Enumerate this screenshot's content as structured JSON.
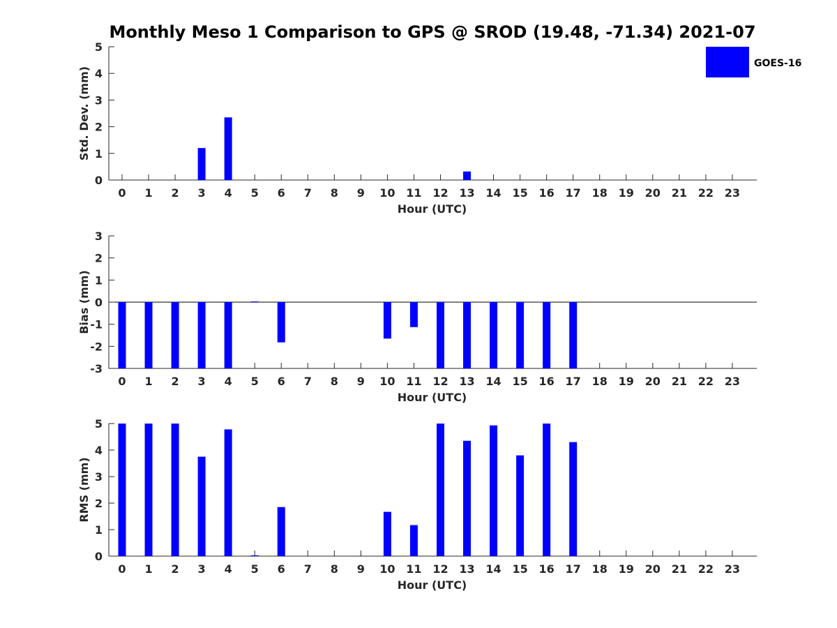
{
  "title": "Monthly Meso 1 Comparison to GPS @ SROD (19.48, -71.34) 2021-07",
  "legend": {
    "label": "GOES-16",
    "placement": "top-right"
  },
  "colors": {
    "bar": "#0000ff",
    "axis": "#262626"
  },
  "chart_data": [
    {
      "type": "bar",
      "name": "std-dev",
      "categories": [
        "0",
        "1",
        "2",
        "3",
        "4",
        "5",
        "6",
        "7",
        "8",
        "9",
        "10",
        "11",
        "12",
        "13",
        "14",
        "15",
        "16",
        "17",
        "18",
        "19",
        "20",
        "21",
        "22",
        "23"
      ],
      "series": [
        {
          "name": "GOES-16",
          "values": [
            null,
            null,
            null,
            1.2,
            2.35,
            null,
            null,
            null,
            null,
            null,
            null,
            null,
            null,
            0.32,
            null,
            null,
            null,
            null,
            null,
            null,
            null,
            null,
            null,
            null
          ]
        }
      ],
      "xlabel": "Hour (UTC)",
      "ylabel": "Std. Dev. (mm)",
      "ylim": [
        0,
        5
      ],
      "yticks": [
        0,
        1,
        2,
        3,
        4,
        5
      ],
      "grid": false
    },
    {
      "type": "bar",
      "name": "bias",
      "categories": [
        "0",
        "1",
        "2",
        "3",
        "4",
        "5",
        "6",
        "7",
        "8",
        "9",
        "10",
        "11",
        "12",
        "13",
        "14",
        "15",
        "16",
        "17",
        "18",
        "19",
        "20",
        "21",
        "22",
        "23"
      ],
      "series": [
        {
          "name": "GOES-16",
          "values": [
            -3,
            -3,
            -3,
            -3,
            -3,
            0.03,
            -1.82,
            null,
            null,
            null,
            -1.65,
            -1.13,
            -3,
            -3,
            -3,
            -3,
            -3,
            -3,
            null,
            null,
            null,
            null,
            null,
            null
          ]
        }
      ],
      "xlabel": "Hour (UTC)",
      "ylabel": "Bias (mm)",
      "ylim": [
        -3,
        3
      ],
      "yticks": [
        -3,
        -2,
        -1,
        0,
        1,
        2,
        3
      ],
      "zero_line": true,
      "grid": false
    },
    {
      "type": "bar",
      "name": "rms",
      "categories": [
        "0",
        "1",
        "2",
        "3",
        "4",
        "5",
        "6",
        "7",
        "8",
        "9",
        "10",
        "11",
        "12",
        "13",
        "14",
        "15",
        "16",
        "17",
        "18",
        "19",
        "20",
        "21",
        "22",
        "23"
      ],
      "series": [
        {
          "name": "GOES-16",
          "values": [
            5,
            5,
            5,
            3.75,
            4.78,
            0.03,
            1.85,
            null,
            null,
            null,
            1.67,
            1.17,
            5,
            4.35,
            4.93,
            3.8,
            5,
            4.3,
            null,
            null,
            null,
            null,
            null,
            null
          ]
        }
      ],
      "xlabel": "Hour (UTC)",
      "ylabel": "RMS (mm)",
      "ylim": [
        0,
        5
      ],
      "yticks": [
        0,
        1,
        2,
        3,
        4,
        5
      ],
      "grid": false
    }
  ]
}
